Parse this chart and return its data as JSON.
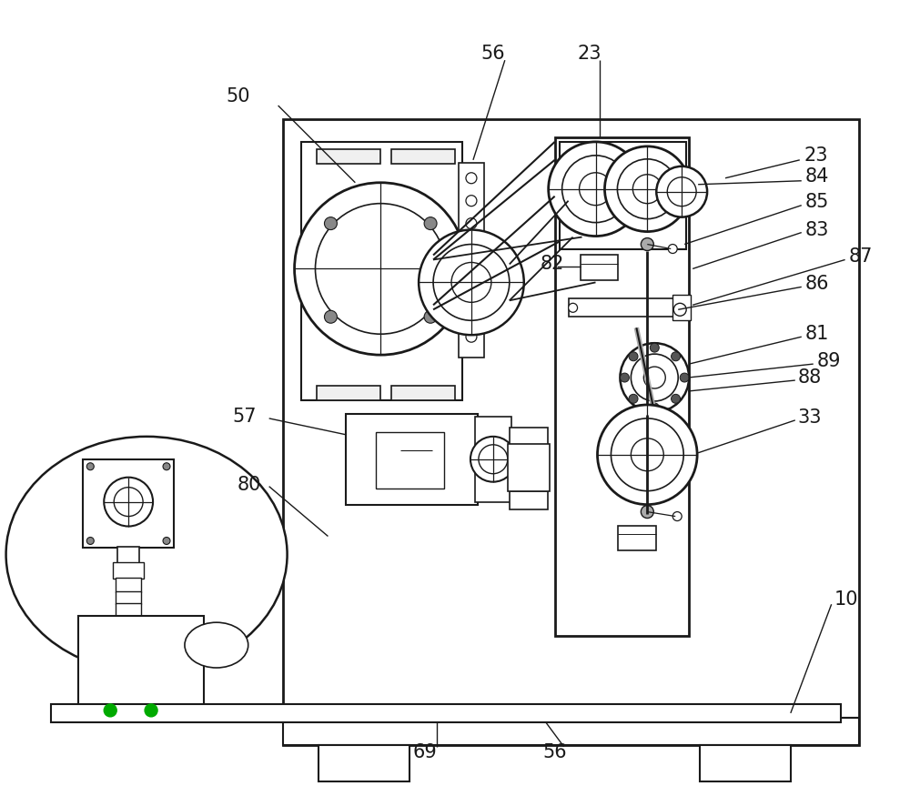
{
  "bg_color": "#ffffff",
  "lc": "#1a1a1a",
  "figsize": [
    10.0,
    8.64
  ],
  "dpi": 100
}
